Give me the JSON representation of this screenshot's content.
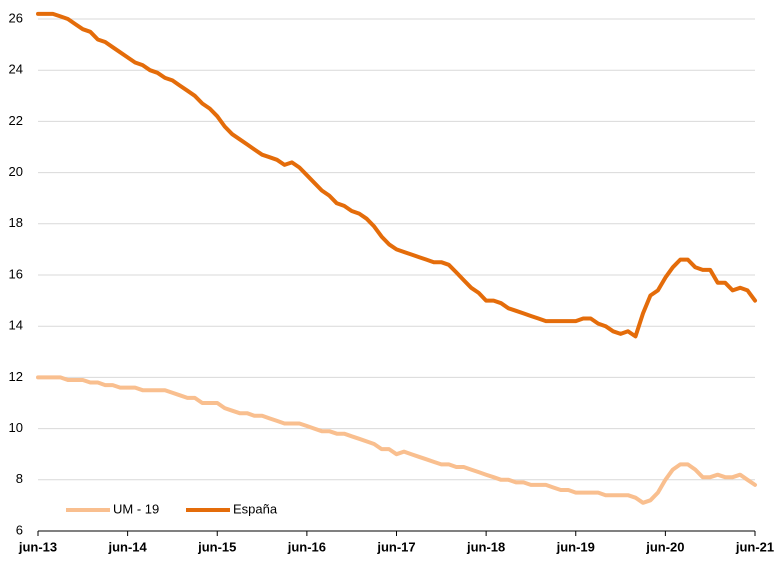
{
  "chart_data": {
    "type": "line",
    "categories": [
      "jun-13",
      null,
      null,
      null,
      null,
      null,
      null,
      null,
      null,
      null,
      null,
      null,
      "jun-14",
      null,
      null,
      null,
      null,
      null,
      null,
      null,
      null,
      null,
      null,
      null,
      "jun-15",
      null,
      null,
      null,
      null,
      null,
      null,
      null,
      null,
      null,
      null,
      null,
      "jun-16",
      null,
      null,
      null,
      null,
      null,
      null,
      null,
      null,
      null,
      null,
      null,
      "jun-17",
      null,
      null,
      null,
      null,
      null,
      null,
      null,
      null,
      null,
      null,
      null,
      "jun-18",
      null,
      null,
      null,
      null,
      null,
      null,
      null,
      null,
      null,
      null,
      null,
      "jun-19",
      null,
      null,
      null,
      null,
      null,
      null,
      null,
      null,
      null,
      null,
      null,
      "jun-20",
      null,
      null,
      null,
      null,
      null,
      null,
      null,
      null,
      null,
      null,
      null,
      "jun-21"
    ],
    "series": [
      {
        "name": "UM - 19",
        "color": "#f9bf8f",
        "values": [
          12.0,
          12.0,
          12.0,
          12.0,
          11.9,
          11.9,
          11.9,
          11.8,
          11.8,
          11.7,
          11.7,
          11.6,
          11.6,
          11.6,
          11.5,
          11.5,
          11.5,
          11.5,
          11.4,
          11.3,
          11.2,
          11.2,
          11.0,
          11.0,
          11.0,
          10.8,
          10.7,
          10.6,
          10.6,
          10.5,
          10.5,
          10.4,
          10.3,
          10.2,
          10.2,
          10.2,
          10.1,
          10.0,
          9.9,
          9.9,
          9.8,
          9.8,
          9.7,
          9.6,
          9.5,
          9.4,
          9.2,
          9.2,
          9.0,
          9.1,
          9.0,
          8.9,
          8.8,
          8.7,
          8.6,
          8.6,
          8.5,
          8.5,
          8.4,
          8.3,
          8.2,
          8.1,
          8.0,
          8.0,
          7.9,
          7.9,
          7.8,
          7.8,
          7.8,
          7.7,
          7.6,
          7.6,
          7.5,
          7.5,
          7.5,
          7.5,
          7.4,
          7.4,
          7.4,
          7.4,
          7.3,
          7.1,
          7.2,
          7.5,
          8.0,
          8.4,
          8.6,
          8.6,
          8.4,
          8.1,
          8.1,
          8.2,
          8.1,
          8.1,
          8.2,
          8.0,
          7.8
        ]
      },
      {
        "name": "España",
        "color": "#e46c0a",
        "values": [
          26.2,
          26.2,
          26.2,
          26.1,
          26.0,
          25.8,
          25.6,
          25.5,
          25.2,
          25.1,
          24.9,
          24.7,
          24.5,
          24.3,
          24.2,
          24.0,
          23.9,
          23.7,
          23.6,
          23.4,
          23.2,
          23.0,
          22.7,
          22.5,
          22.2,
          21.8,
          21.5,
          21.3,
          21.1,
          20.9,
          20.7,
          20.6,
          20.5,
          20.3,
          20.4,
          20.2,
          19.9,
          19.6,
          19.3,
          19.1,
          18.8,
          18.7,
          18.5,
          18.4,
          18.2,
          17.9,
          17.5,
          17.2,
          17.0,
          16.9,
          16.8,
          16.7,
          16.6,
          16.5,
          16.5,
          16.4,
          16.1,
          15.8,
          15.5,
          15.3,
          15.0,
          15.0,
          14.9,
          14.7,
          14.6,
          14.5,
          14.4,
          14.3,
          14.2,
          14.2,
          14.2,
          14.2,
          14.2,
          14.3,
          14.3,
          14.1,
          14.0,
          13.8,
          13.7,
          13.8,
          13.6,
          14.5,
          15.2,
          15.4,
          15.9,
          16.3,
          16.6,
          16.6,
          16.3,
          16.2,
          16.2,
          15.7,
          15.7,
          15.4,
          15.5,
          15.4,
          15.0
        ]
      }
    ],
    "ylim": [
      6,
      26
    ],
    "yticks": [
      6,
      8,
      10,
      12,
      14,
      16,
      18,
      20,
      22,
      24,
      26
    ],
    "grid": true,
    "legend": "lower left"
  }
}
